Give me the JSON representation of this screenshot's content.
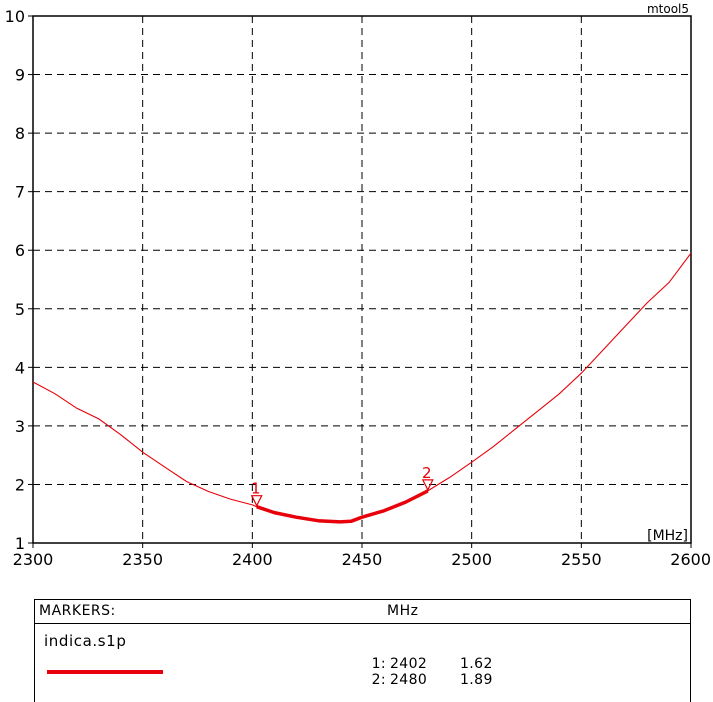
{
  "chart_data": {
    "type": "line",
    "tool_label": "mtool5",
    "x_unit_label": "[MHz]",
    "xlim": [
      2300,
      2600
    ],
    "ylim": [
      1,
      10
    ],
    "x_ticks": [
      "2300",
      "2350",
      "2400",
      "2450",
      "2500",
      "2550",
      "2600"
    ],
    "y_ticks": [
      "1",
      "2",
      "3",
      "4",
      "5",
      "6",
      "7",
      "8",
      "9",
      "10"
    ],
    "grid": true,
    "grid_style": "dashed",
    "series": [
      {
        "name": "indica.s1p",
        "color": "#e8000a",
        "x": [
          2300,
          2310,
          2320,
          2330,
          2340,
          2350,
          2360,
          2370,
          2380,
          2390,
          2400,
          2402,
          2410,
          2420,
          2430,
          2440,
          2445,
          2450,
          2460,
          2470,
          2480,
          2490,
          2500,
          2510,
          2520,
          2530,
          2540,
          2550,
          2560,
          2570,
          2580,
          2590,
          2600
        ],
        "y": [
          3.75,
          3.55,
          3.3,
          3.12,
          2.85,
          2.55,
          2.3,
          2.05,
          1.88,
          1.75,
          1.65,
          1.62,
          1.52,
          1.44,
          1.38,
          1.36,
          1.37,
          1.44,
          1.55,
          1.7,
          1.89,
          2.12,
          2.38,
          2.65,
          2.95,
          3.25,
          3.55,
          3.9,
          4.3,
          4.7,
          5.1,
          5.45,
          5.95
        ]
      }
    ],
    "highlight_range": [
      2402,
      2480
    ],
    "markers": [
      {
        "id": "1",
        "x": 2402,
        "y": 1.62
      },
      {
        "id": "2",
        "x": 2480,
        "y": 1.89
      }
    ]
  },
  "markers_panel": {
    "title": "MARKERS:",
    "unit": "MHz",
    "file_name": "indica.s1p",
    "rows": [
      {
        "id": "1:",
        "freq": "2402",
        "value": "1.62"
      },
      {
        "id": "2:",
        "freq": "2480",
        "value": "1.89"
      }
    ]
  }
}
